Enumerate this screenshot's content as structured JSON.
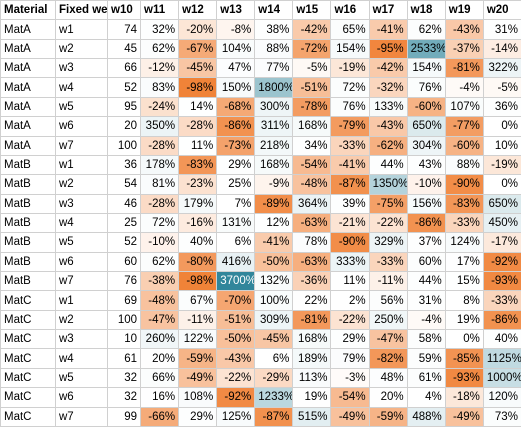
{
  "table": {
    "columns": [
      "Material",
      "Fixed week",
      "w10",
      "w11",
      "w12",
      "w13",
      "w14",
      "w15",
      "w16",
      "w17",
      "w18",
      "w19",
      "w20"
    ],
    "rows": [
      [
        "MatA",
        "w1",
        74,
        "32%",
        "-20%",
        "-8%",
        "38%",
        "-42%",
        "65%",
        "-41%",
        "62%",
        "-43%",
        "31%"
      ],
      [
        "MatA",
        "w2",
        45,
        "62%",
        "-67%",
        "104%",
        "88%",
        "-72%",
        "154%",
        "-95%",
        "2533%",
        "-37%",
        "-14%"
      ],
      [
        "MatA",
        "w3",
        66,
        "-12%",
        "-45%",
        "47%",
        "77%",
        "-5%",
        "-19%",
        "-42%",
        "154%",
        "-81%",
        "322%"
      ],
      [
        "MatA",
        "w4",
        52,
        "83%",
        "-98%",
        "150%",
        "1800%",
        "-51%",
        "72%",
        "-32%",
        "76%",
        "-4%",
        "-5%"
      ],
      [
        "MatA",
        "w5",
        95,
        "-24%",
        "14%",
        "-68%",
        "300%",
        "-78%",
        "76%",
        "133%",
        "-60%",
        "107%",
        "36%"
      ],
      [
        "MatA",
        "w6",
        20,
        "350%",
        "-28%",
        "-86%",
        "311%",
        "168%",
        "-79%",
        "-43%",
        "650%",
        "-77%",
        "0%"
      ],
      [
        "MatA",
        "w7",
        100,
        "-28%",
        "11%",
        "-73%",
        "218%",
        "34%",
        "-33%",
        "-62%",
        "304%",
        "-60%",
        "10%"
      ],
      [
        "MatB",
        "w1",
        36,
        "178%",
        "-83%",
        "29%",
        "168%",
        "-54%",
        "-41%",
        "44%",
        "43%",
        "88%",
        "-19%"
      ],
      [
        "MatB",
        "w2",
        54,
        "81%",
        "-23%",
        "25%",
        "-9%",
        "-48%",
        "-87%",
        "1350%",
        "-10%",
        "-90%",
        "0%"
      ],
      [
        "MatB",
        "w3",
        46,
        "-28%",
        "179%",
        "7%",
        "-89%",
        "364%",
        "39%",
        "-75%",
        "156%",
        "-83%",
        "650%"
      ],
      [
        "MatB",
        "w4",
        25,
        "72%",
        "-16%",
        "131%",
        "12%",
        "-63%",
        "-21%",
        "-22%",
        "-86%",
        "-33%",
        "450%"
      ],
      [
        "MatB",
        "w5",
        52,
        "-10%",
        "40%",
        "6%",
        "-41%",
        "78%",
        "-90%",
        "329%",
        "37%",
        "124%",
        "-17%"
      ],
      [
        "MatB",
        "w6",
        60,
        "62%",
        "-80%",
        "416%",
        "-50%",
        "-63%",
        "333%",
        "-33%",
        "60%",
        "17%",
        "-92%"
      ],
      [
        "MatB",
        "w7",
        76,
        "-38%",
        "-98%",
        "3700%",
        "132%",
        "-36%",
        "11%",
        "-11%",
        "44%",
        "15%",
        "-93%"
      ],
      [
        "MatC",
        "w1",
        69,
        "-48%",
        "67%",
        "-70%",
        "100%",
        "22%",
        "2%",
        "56%",
        "31%",
        "8%",
        "-33%"
      ],
      [
        "MatC",
        "w2",
        100,
        "-47%",
        "-11%",
        "-51%",
        "309%",
        "-81%",
        "-22%",
        "250%",
        "-4%",
        "19%",
        "-86%"
      ],
      [
        "MatC",
        "w3",
        10,
        "260%",
        "122%",
        "-50%",
        "-45%",
        "168%",
        "29%",
        "-47%",
        "58%",
        "0%",
        "40%"
      ],
      [
        "MatC",
        "w4",
        61,
        "20%",
        "-59%",
        "-43%",
        "6%",
        "189%",
        "79%",
        "-82%",
        "59%",
        "-85%",
        "1125%"
      ],
      [
        "MatC",
        "w5",
        32,
        "66%",
        "-49%",
        "-22%",
        "-29%",
        "113%",
        "-3%",
        "48%",
        "61%",
        "-93%",
        "1000%"
      ],
      [
        "MatC",
        "w6",
        32,
        "16%",
        "108%",
        "-92%",
        "1233%",
        "19%",
        "-54%",
        "20%",
        "4%",
        "-18%",
        "120%"
      ],
      [
        "MatC",
        "w7",
        99,
        "-66%",
        "29%",
        "125%",
        "-87%",
        "515%",
        "-49%",
        "-59%",
        "488%",
        "-49%",
        "73%"
      ]
    ]
  }
}
